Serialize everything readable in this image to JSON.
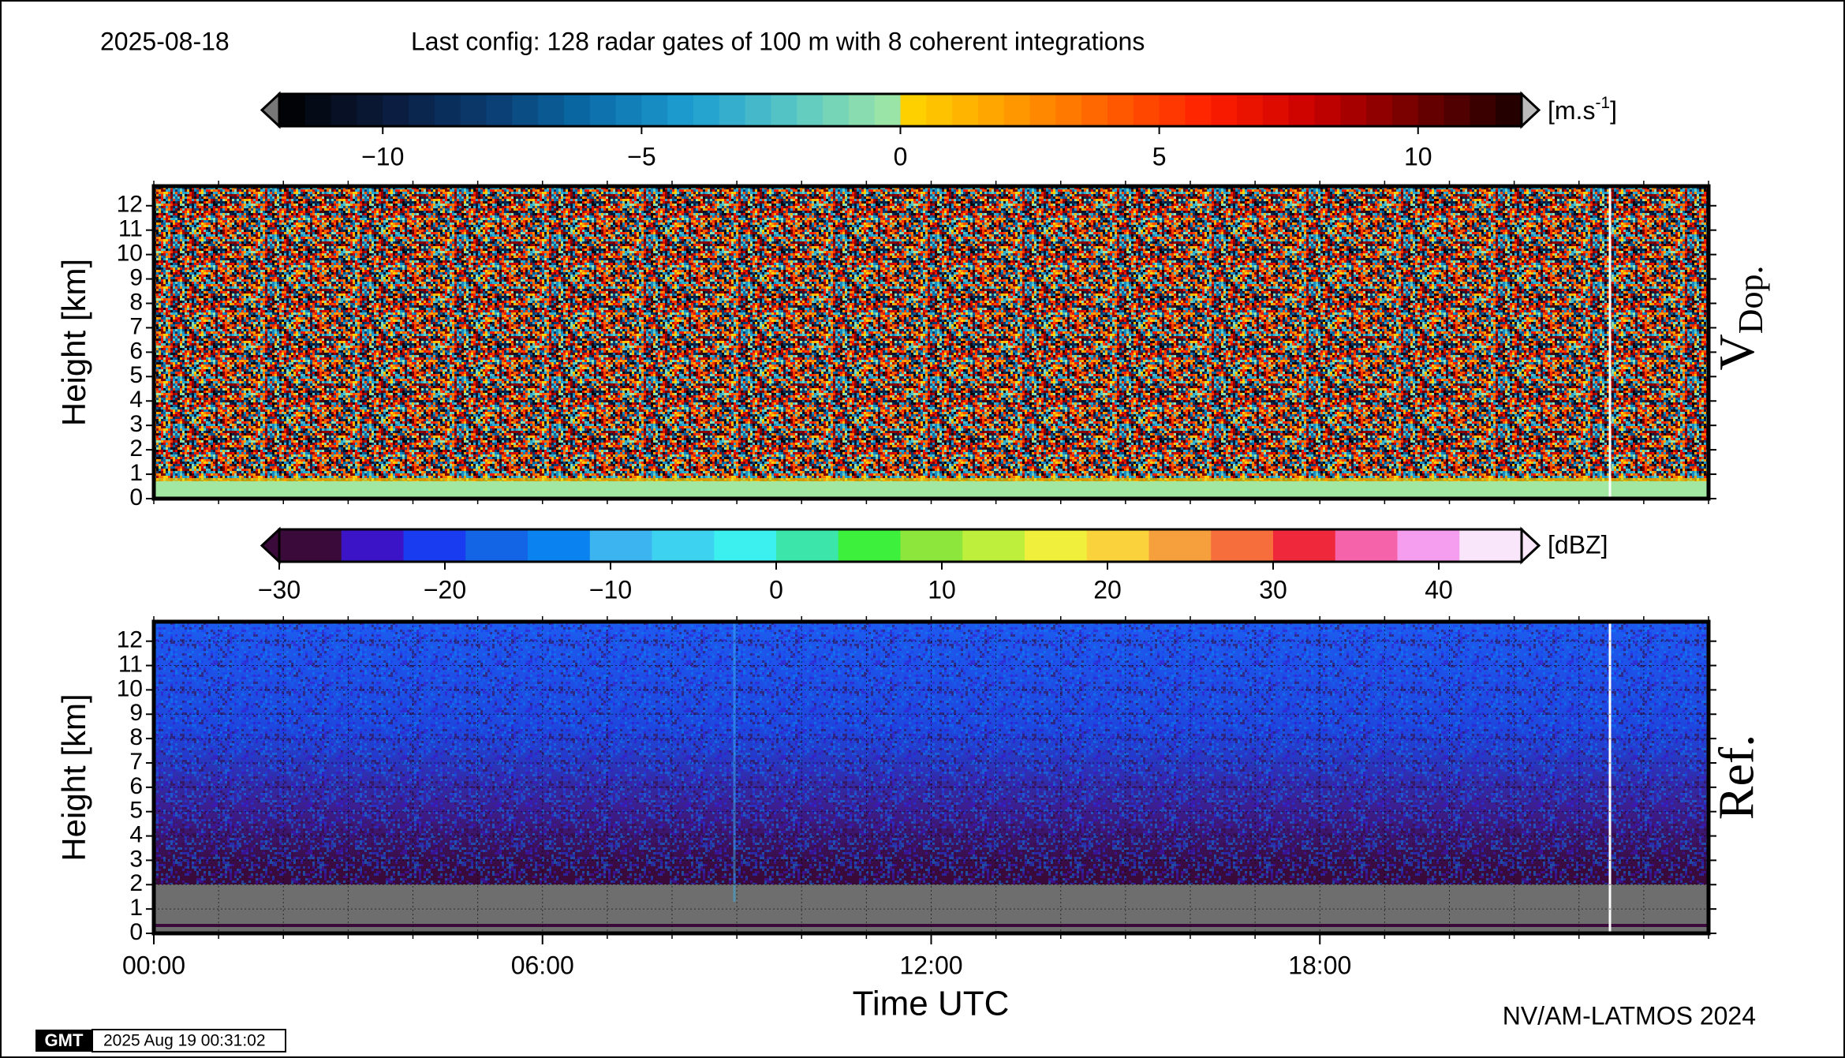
{
  "date": "2025-08-18",
  "config": "Last config: 128 radar gates of 100 m with 8 coherent integrations",
  "credit": "NV/AM-LATMOS 2024",
  "logo": "GMT",
  "timestamp": "2025 Aug 19 00:31:02",
  "chart_data": [
    {
      "type": "heatmap",
      "y_label": "Height [km]",
      "panel_label": "V",
      "panel_label_sub": "Dop.",
      "xlim": [
        0,
        24
      ],
      "ylim": [
        0,
        12.8
      ],
      "yticks": [
        0,
        1,
        2,
        3,
        4,
        5,
        6,
        7,
        8,
        9,
        10,
        11,
        12
      ],
      "grid": false,
      "colorbar": {
        "lim": [
          -12,
          12
        ],
        "step": 0.5,
        "ticks": [
          {
            "value": -10,
            "label": "−10"
          },
          {
            "value": -5,
            "label": "−5"
          },
          0,
          5,
          10
        ],
        "colors": [
          "#000000",
          "#0b1a3a",
          "#0a3a6e",
          "#0a6ca8",
          "#1e9fd2",
          "#5cc8c4",
          "#a2e8a2",
          "#ffd700",
          "#ffa000",
          "#ff6000",
          "#ff1e00",
          "#c80000",
          "#700000",
          "#1a0000"
        ],
        "unit": "[m.s",
        "unit_exponent": "-1",
        "unit_close": "]"
      }
    },
    {
      "type": "heatmap",
      "y_label": "Height [km]",
      "panel_label": "Ref.",
      "x_label": "Time UTC",
      "xlim": [
        0,
        24
      ],
      "ylim": [
        0,
        12.8
      ],
      "yticks": [
        0,
        1,
        2,
        3,
        4,
        5,
        6,
        7,
        8,
        9,
        10,
        11,
        12
      ],
      "grid": true,
      "xticks": [
        {
          "value": 0,
          "label": "00:00"
        },
        {
          "value": 6,
          "label": "06:00"
        },
        {
          "value": 12,
          "label": "12:00"
        },
        {
          "value": 18,
          "label": "18:00"
        }
      ],
      "colorbar": {
        "lim": [
          -30,
          45
        ],
        "ticks": [
          {
            "value": -30,
            "label": "−30"
          },
          {
            "value": -20,
            "label": "−20"
          },
          {
            "value": -10,
            "label": "−10"
          },
          0,
          10,
          20,
          30,
          40
        ],
        "colors": [
          "#3a0a3a",
          "#3c14c8",
          "#1a3cf0",
          "#1464e6",
          "#0a82f0",
          "#3cb4f0",
          "#3cd2f0",
          "#3cf0f0",
          "#3ce6aa",
          "#3cf03c",
          "#8ce63c",
          "#beef3c",
          "#f0f03c",
          "#fad23c",
          "#f5a03c",
          "#f56e3c",
          "#f0283c",
          "#f564aa",
          "#f59ef0",
          "#fae6fa"
        ],
        "unit": "[dBZ]"
      }
    }
  ]
}
